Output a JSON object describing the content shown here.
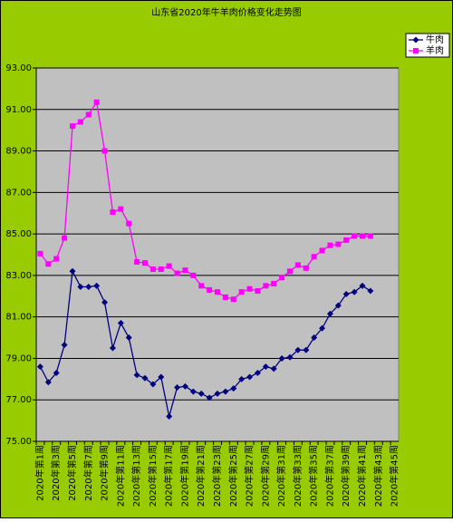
{
  "chart_data": {
    "type": "line",
    "title": "山东省2020年牛羊肉价格变化走势图",
    "categories": [
      "2020年第1周",
      null,
      "2020年第3周",
      null,
      "2020年第5周",
      null,
      "2020年第7周",
      null,
      "2020年第9周",
      null,
      "2020年第11周",
      null,
      "2020年第13周",
      null,
      "2020年第15周",
      null,
      "2020年第17周",
      null,
      "2020年第19周",
      null,
      "2020年第21周",
      null,
      "2020年第23周",
      null,
      "2020年第25周",
      null,
      "2020年第27周",
      null,
      "2020年第29周",
      null,
      "2020年第31周",
      null,
      "2020年第33周",
      null,
      "2020年第35周",
      null,
      "2020年第37周",
      null,
      "2020年第39周",
      null,
      "2020年第41周",
      null,
      "2020年第43周",
      null,
      "2020年第45周"
    ],
    "series": [
      {
        "name": "牛肉",
        "color": "#000080",
        "marker": "diamond",
        "values": [
          78.6,
          77.85,
          78.3,
          79.65,
          83.2,
          82.45,
          82.45,
          82.5,
          81.7,
          79.5,
          80.7,
          80.0,
          78.2,
          78.05,
          77.75,
          78.1,
          76.2,
          77.6,
          77.65,
          77.4,
          77.3,
          77.1,
          77.3,
          77.4,
          77.55,
          78.0,
          78.1,
          78.3,
          78.6,
          78.5,
          79.0,
          79.05,
          79.4,
          79.4,
          80.0,
          80.45,
          81.15,
          81.55,
          82.1,
          82.2,
          82.5,
          82.25,
          null,
          null,
          null
        ]
      },
      {
        "name": "羊肉",
        "color": "#ff00ff",
        "marker": "square",
        "values": [
          84.05,
          83.55,
          83.8,
          84.8,
          90.2,
          90.4,
          90.75,
          91.35,
          89.0,
          86.05,
          86.2,
          85.5,
          83.65,
          83.6,
          83.3,
          83.3,
          83.45,
          83.1,
          83.25,
          83.0,
          82.5,
          82.3,
          82.2,
          81.95,
          81.85,
          82.2,
          82.35,
          82.25,
          82.5,
          82.6,
          82.9,
          83.2,
          83.5,
          83.35,
          83.9,
          84.2,
          84.45,
          84.5,
          84.7,
          84.9,
          84.9,
          84.9,
          null,
          null,
          null
        ]
      }
    ],
    "ylim": [
      75,
      93
    ],
    "yticks": [
      {
        "value": 75,
        "label": "75.00"
      },
      {
        "value": 77,
        "label": "77.00"
      },
      {
        "value": 79,
        "label": "79.00"
      },
      {
        "value": 81,
        "label": "81.00"
      },
      {
        "value": 83,
        "label": "83.00"
      },
      {
        "value": 85,
        "label": "85.00"
      },
      {
        "value": 87,
        "label": "87.00"
      },
      {
        "value": 89,
        "label": "89.00"
      },
      {
        "value": 91,
        "label": "91.00"
      },
      {
        "value": 93,
        "label": "93.00"
      }
    ],
    "grid": true,
    "legend": "top-right"
  }
}
